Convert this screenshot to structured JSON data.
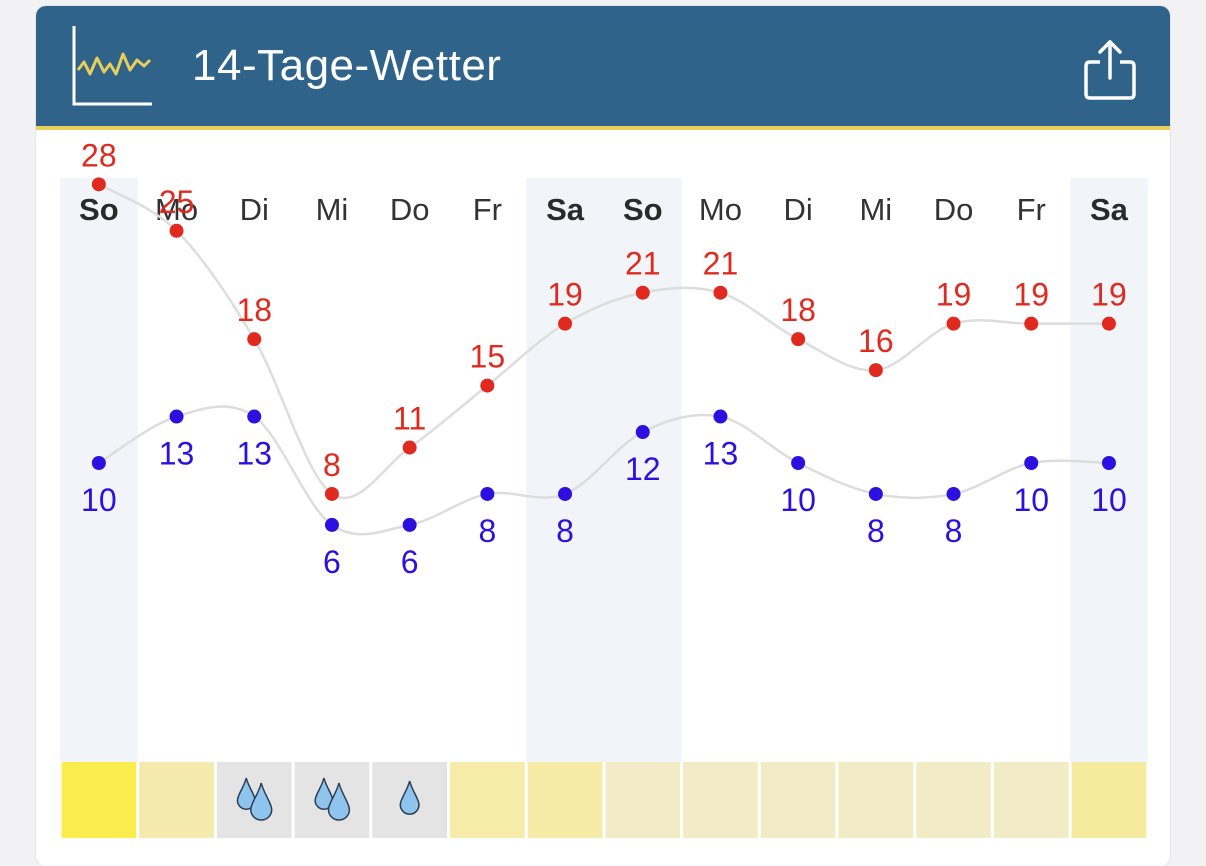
{
  "header": {
    "title": "14-Tage-Wetter",
    "logo_icon": "line-chart-icon",
    "share_icon": "share-icon"
  },
  "colors": {
    "header_bg": "#2f6389",
    "header_accent": "#e8cf5a",
    "max_color": "#e02a1f",
    "min_color": "#2b10e0",
    "weekend_bg": "#f1f5f9",
    "line_color": "#dddddd"
  },
  "chart_data": {
    "type": "line",
    "categories": [
      "So",
      "Mo",
      "Di",
      "Mi",
      "Do",
      "Fr",
      "Sa",
      "So",
      "Mo",
      "Di",
      "Mi",
      "Do",
      "Fr",
      "Sa"
    ],
    "weekend": [
      true,
      false,
      false,
      false,
      false,
      false,
      true,
      true,
      false,
      false,
      false,
      false,
      false,
      true
    ],
    "series": [
      {
        "key": "max",
        "values": [
          28,
          25,
          18,
          8,
          11,
          15,
          19,
          21,
          21,
          18,
          16,
          19,
          19,
          19
        ]
      },
      {
        "key": "min",
        "values": [
          10,
          13,
          13,
          6,
          6,
          8,
          8,
          12,
          13,
          10,
          8,
          8,
          10,
          10
        ]
      }
    ],
    "weather": [
      {
        "bg": "#fbec4e",
        "icon": "none"
      },
      {
        "bg": "#f4eaac",
        "icon": "none"
      },
      {
        "bg": "#e4e4e4",
        "icon": "rain-heavy-icon"
      },
      {
        "bg": "#e4e4e4",
        "icon": "rain-heavy-icon"
      },
      {
        "bg": "#e4e4e4",
        "icon": "rain-light-icon"
      },
      {
        "bg": "#f6ecaa",
        "icon": "none"
      },
      {
        "bg": "#f5eaa6",
        "icon": "none"
      },
      {
        "bg": "#f1ecc6",
        "icon": "none"
      },
      {
        "bg": "#f1ecc6",
        "icon": "none"
      },
      {
        "bg": "#f1ecc6",
        "icon": "none"
      },
      {
        "bg": "#f1ecc6",
        "icon": "none"
      },
      {
        "bg": "#f1ecc6",
        "icon": "none"
      },
      {
        "bg": "#f1ecc6",
        "icon": "none"
      },
      {
        "bg": "#f6ea9e",
        "icon": "none"
      }
    ]
  }
}
